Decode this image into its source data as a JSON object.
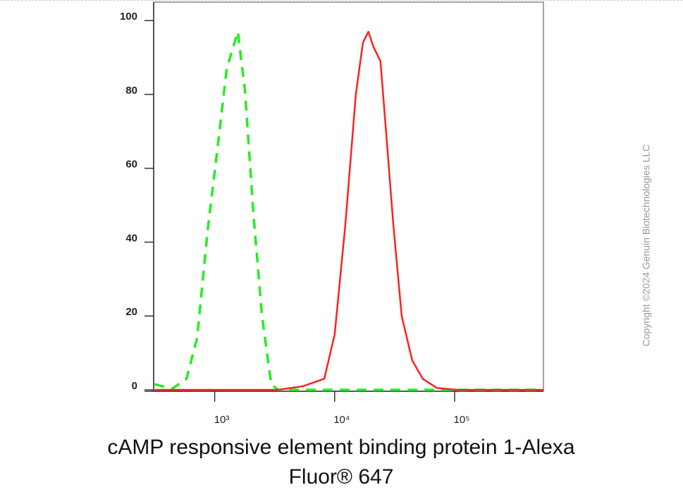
{
  "chart_data": {
    "type": "line",
    "x_label": [
      "cAMP responsive element binding protein 1-Alexa",
      "Fluor® 647"
    ],
    "watermark": "Copyright ©2024 Genuin Biotechnologies LLC",
    "xscale": "log",
    "xlim": [
      310,
      550000
    ],
    "xticks": [
      {
        "value": 1000,
        "label": "10³"
      },
      {
        "value": 10000,
        "label": "10⁴"
      },
      {
        "value": 100000,
        "label": "10⁵"
      }
    ],
    "ylim": [
      0,
      105
    ],
    "yticks": [
      0,
      20,
      40,
      60,
      80,
      100
    ],
    "series": [
      {
        "color": "#22ee22",
        "dash": true,
        "x": [
          316,
          443,
          582,
          713,
          873,
          1070,
          1260,
          1560,
          1790,
          2100,
          2480,
          2960,
          3380,
          550000
        ],
        "values": [
          1.5,
          0.3,
          3,
          14,
          43,
          67,
          87,
          97,
          81,
          48,
          20,
          1.5,
          0,
          0
        ]
      },
      {
        "color": "#ff2020",
        "dash": false,
        "x": [
          316,
          3380,
          5440,
          8200,
          10000,
          12300,
          15000,
          17200,
          19100,
          21000,
          24100,
          26800,
          30800,
          36200,
          44300,
          54300,
          71200,
          107000,
          550000
        ],
        "values": [
          0,
          0,
          1,
          3,
          15,
          45,
          80,
          94,
          97,
          93,
          89,
          70,
          45,
          20,
          8,
          3,
          0.5,
          0,
          0
        ]
      }
    ]
  }
}
